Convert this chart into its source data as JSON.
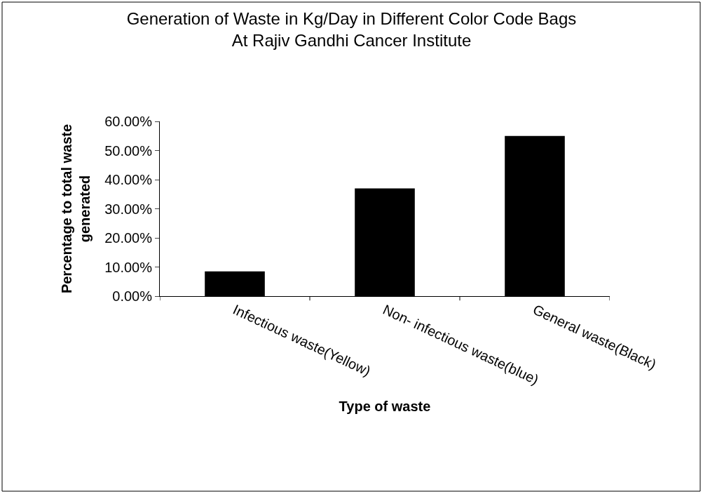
{
  "chart_data": {
    "type": "bar",
    "title": "Generation of Waste in Kg/Day in Different Color Code Bags At Rajiv Gandhi Cancer Institute",
    "xlabel": "Type of waste",
    "ylabel": "Percentage to total waste generated",
    "categories": [
      "Infectious waste(Yellow)",
      "Non- infectious waste(blue)",
      "General waste(Black)"
    ],
    "values": [
      8.5,
      37,
      55
    ],
    "color": "#000000",
    "ylim": [
      0,
      60
    ],
    "yticks": [
      {
        "value": 0,
        "label": "0.00%"
      },
      {
        "value": 10,
        "label": "10.00%"
      },
      {
        "value": 20,
        "label": "20.00%"
      },
      {
        "value": 30,
        "label": "30.00%"
      },
      {
        "value": 40,
        "label": "40.00%"
      },
      {
        "value": 50,
        "label": "50.00%"
      },
      {
        "value": 60,
        "label": "60.00%"
      }
    ],
    "legend": false
  }
}
